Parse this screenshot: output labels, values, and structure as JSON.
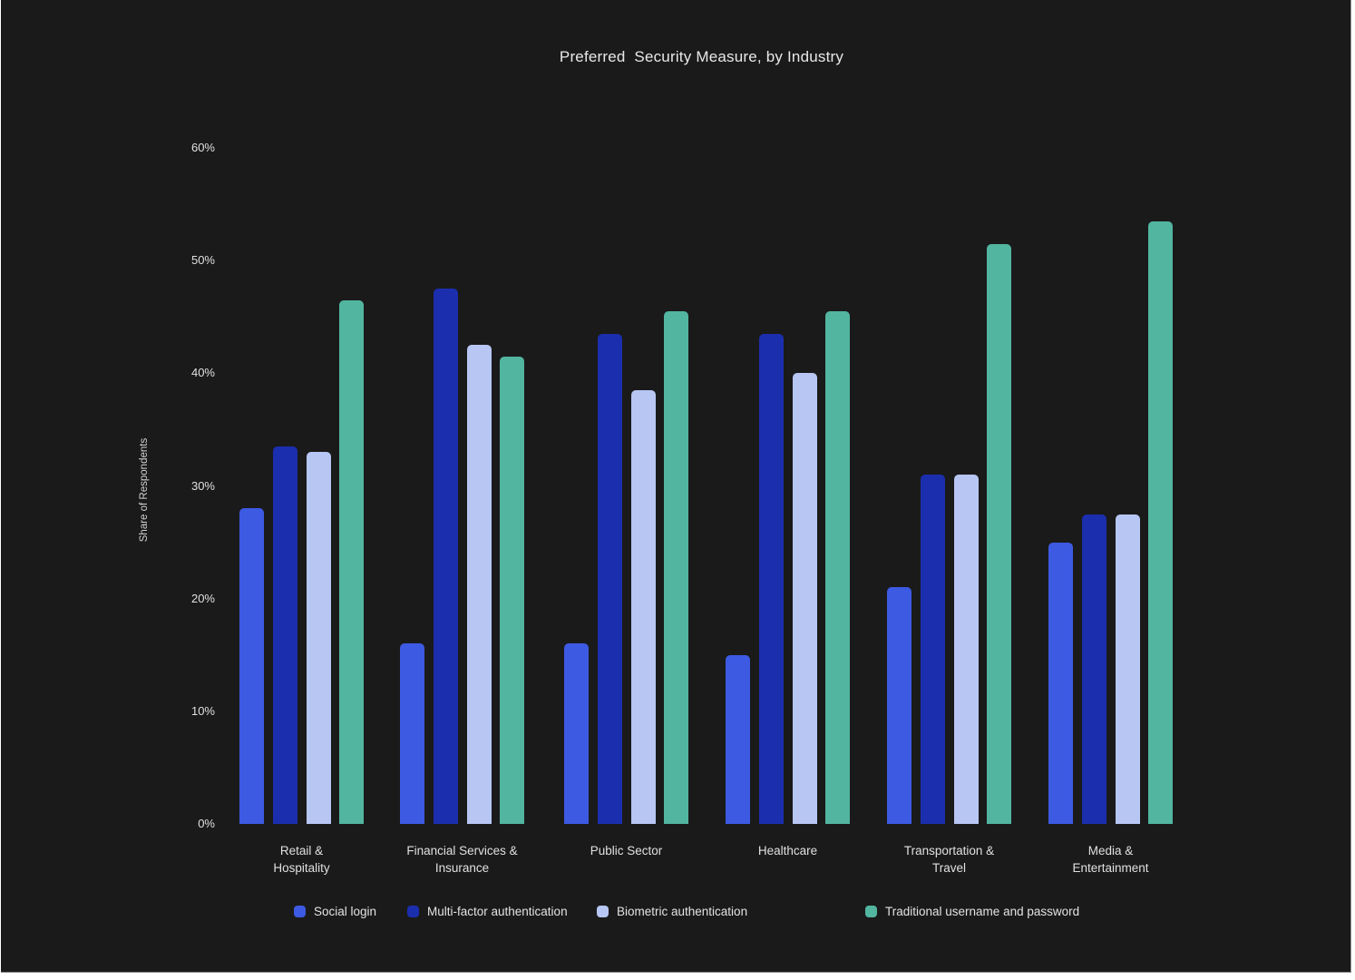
{
  "page": {
    "background_color": "#FFFFFF",
    "canvas_color": "#1A1A1A"
  },
  "chart_data": {
    "type": "bar",
    "title": "Preferred  Security Measure, by Industry",
    "ylabel": "Share of Respondents",
    "xlabel": "",
    "categories": [
      "Retail &\nHospitality",
      "Financial Services &\nInsurance",
      "Public Sector",
      "Healthcare",
      "Transportation &\nTravel",
      "Media &\nEntertainment"
    ],
    "series": [
      {
        "name": "Social login",
        "color": "#3D5AE3",
        "values": [
          28,
          16,
          16,
          15,
          21,
          25
        ]
      },
      {
        "name": "Multi-factor authentication",
        "color": "#1B2EAD",
        "values": [
          33.5,
          47.5,
          43.5,
          43.5,
          31,
          27.5
        ]
      },
      {
        "name": "Biometric authentication",
        "color": "#B7C6F3",
        "values": [
          33,
          42.5,
          38.5,
          40,
          31,
          27.5
        ]
      },
      {
        "name": "Traditional username and password",
        "color": "#52B5A0",
        "values": [
          46.5,
          41.5,
          45.5,
          45.5,
          51.5,
          53.5
        ]
      }
    ],
    "yticks": [
      "0%",
      "10%",
      "20%",
      "30%",
      "40%",
      "50%",
      "60%"
    ],
    "ytick_values": [
      0,
      10,
      20,
      30,
      40,
      50,
      60
    ],
    "ylim": [
      0,
      60
    ],
    "grid": false,
    "legend_position": "bottom",
    "text_color": "#E0E0E0"
  }
}
